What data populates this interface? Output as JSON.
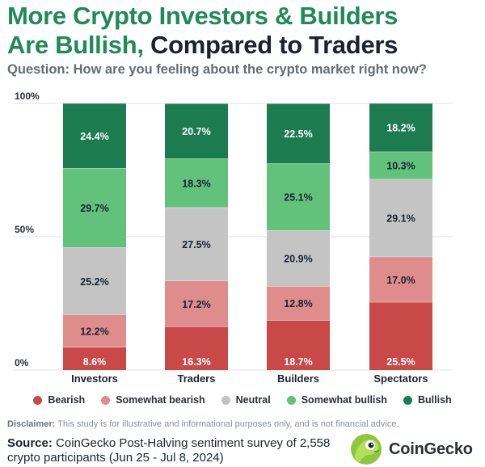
{
  "title": {
    "line1": "More Crypto Investors & Builders",
    "line2_green": "Are Bullish,",
    "line2_dark": "Compared to Traders"
  },
  "question": "Question: How are you feeling about the crypto market right now?",
  "colors": {
    "Bearish": "#c94848",
    "Somewhat bearish": "#df8d8c",
    "Neutral": "#c4c4c4",
    "Somewhat bullish": "#62c27c",
    "Bullish": "#1d7c4f",
    "title_green": "#1f8a56"
  },
  "chart_data": {
    "type": "bar",
    "stacked": true,
    "categories": [
      "Investors",
      "Traders",
      "Builders",
      "Spectators"
    ],
    "ylim": [
      0,
      100
    ],
    "yticks": [
      "0%",
      "50%",
      "100%"
    ],
    "series": [
      {
        "name": "Bearish",
        "values": [
          8.6,
          16.3,
          18.7,
          25.5
        ],
        "labels": [
          "8.6%",
          "16.3%",
          "18.7%",
          "25.5%"
        ]
      },
      {
        "name": "Somewhat bearish",
        "values": [
          12.2,
          17.2,
          12.8,
          17.0
        ],
        "labels": [
          "12.2%",
          "17.2%",
          "12.8%",
          "17.0%"
        ]
      },
      {
        "name": "Neutral",
        "values": [
          25.2,
          27.5,
          20.9,
          29.1
        ],
        "labels": [
          "25.2%",
          "27.5%",
          "20.9%",
          "29.1%"
        ]
      },
      {
        "name": "Somewhat bullish",
        "values": [
          29.7,
          18.3,
          25.1,
          10.3
        ],
        "labels": [
          "29.7%",
          "18.3%",
          "25.1%",
          "10.3%"
        ]
      },
      {
        "name": "Bullish",
        "values": [
          24.4,
          20.7,
          22.5,
          18.2
        ],
        "labels": [
          "24.4%",
          "20.7%",
          "22.5%",
          "18.2%"
        ]
      }
    ],
    "legend_position": "bottom"
  },
  "legend": [
    "Bearish",
    "Somewhat bearish",
    "Neutral",
    "Somewhat bullish",
    "Bullish"
  ],
  "disclaimer": {
    "label": "Disclaimer:",
    "text": "This study is for illustrative and informational purposes only, and is not financial advice."
  },
  "source": {
    "label": "Source:",
    "text": "CoinGecko Post-Halving sentiment survey of 2,558 crypto participants (Jun 25 - Jul 8, 2024)"
  },
  "brand": {
    "name": "CoinGecko",
    "logo_icon": "gecko-logo-icon"
  }
}
